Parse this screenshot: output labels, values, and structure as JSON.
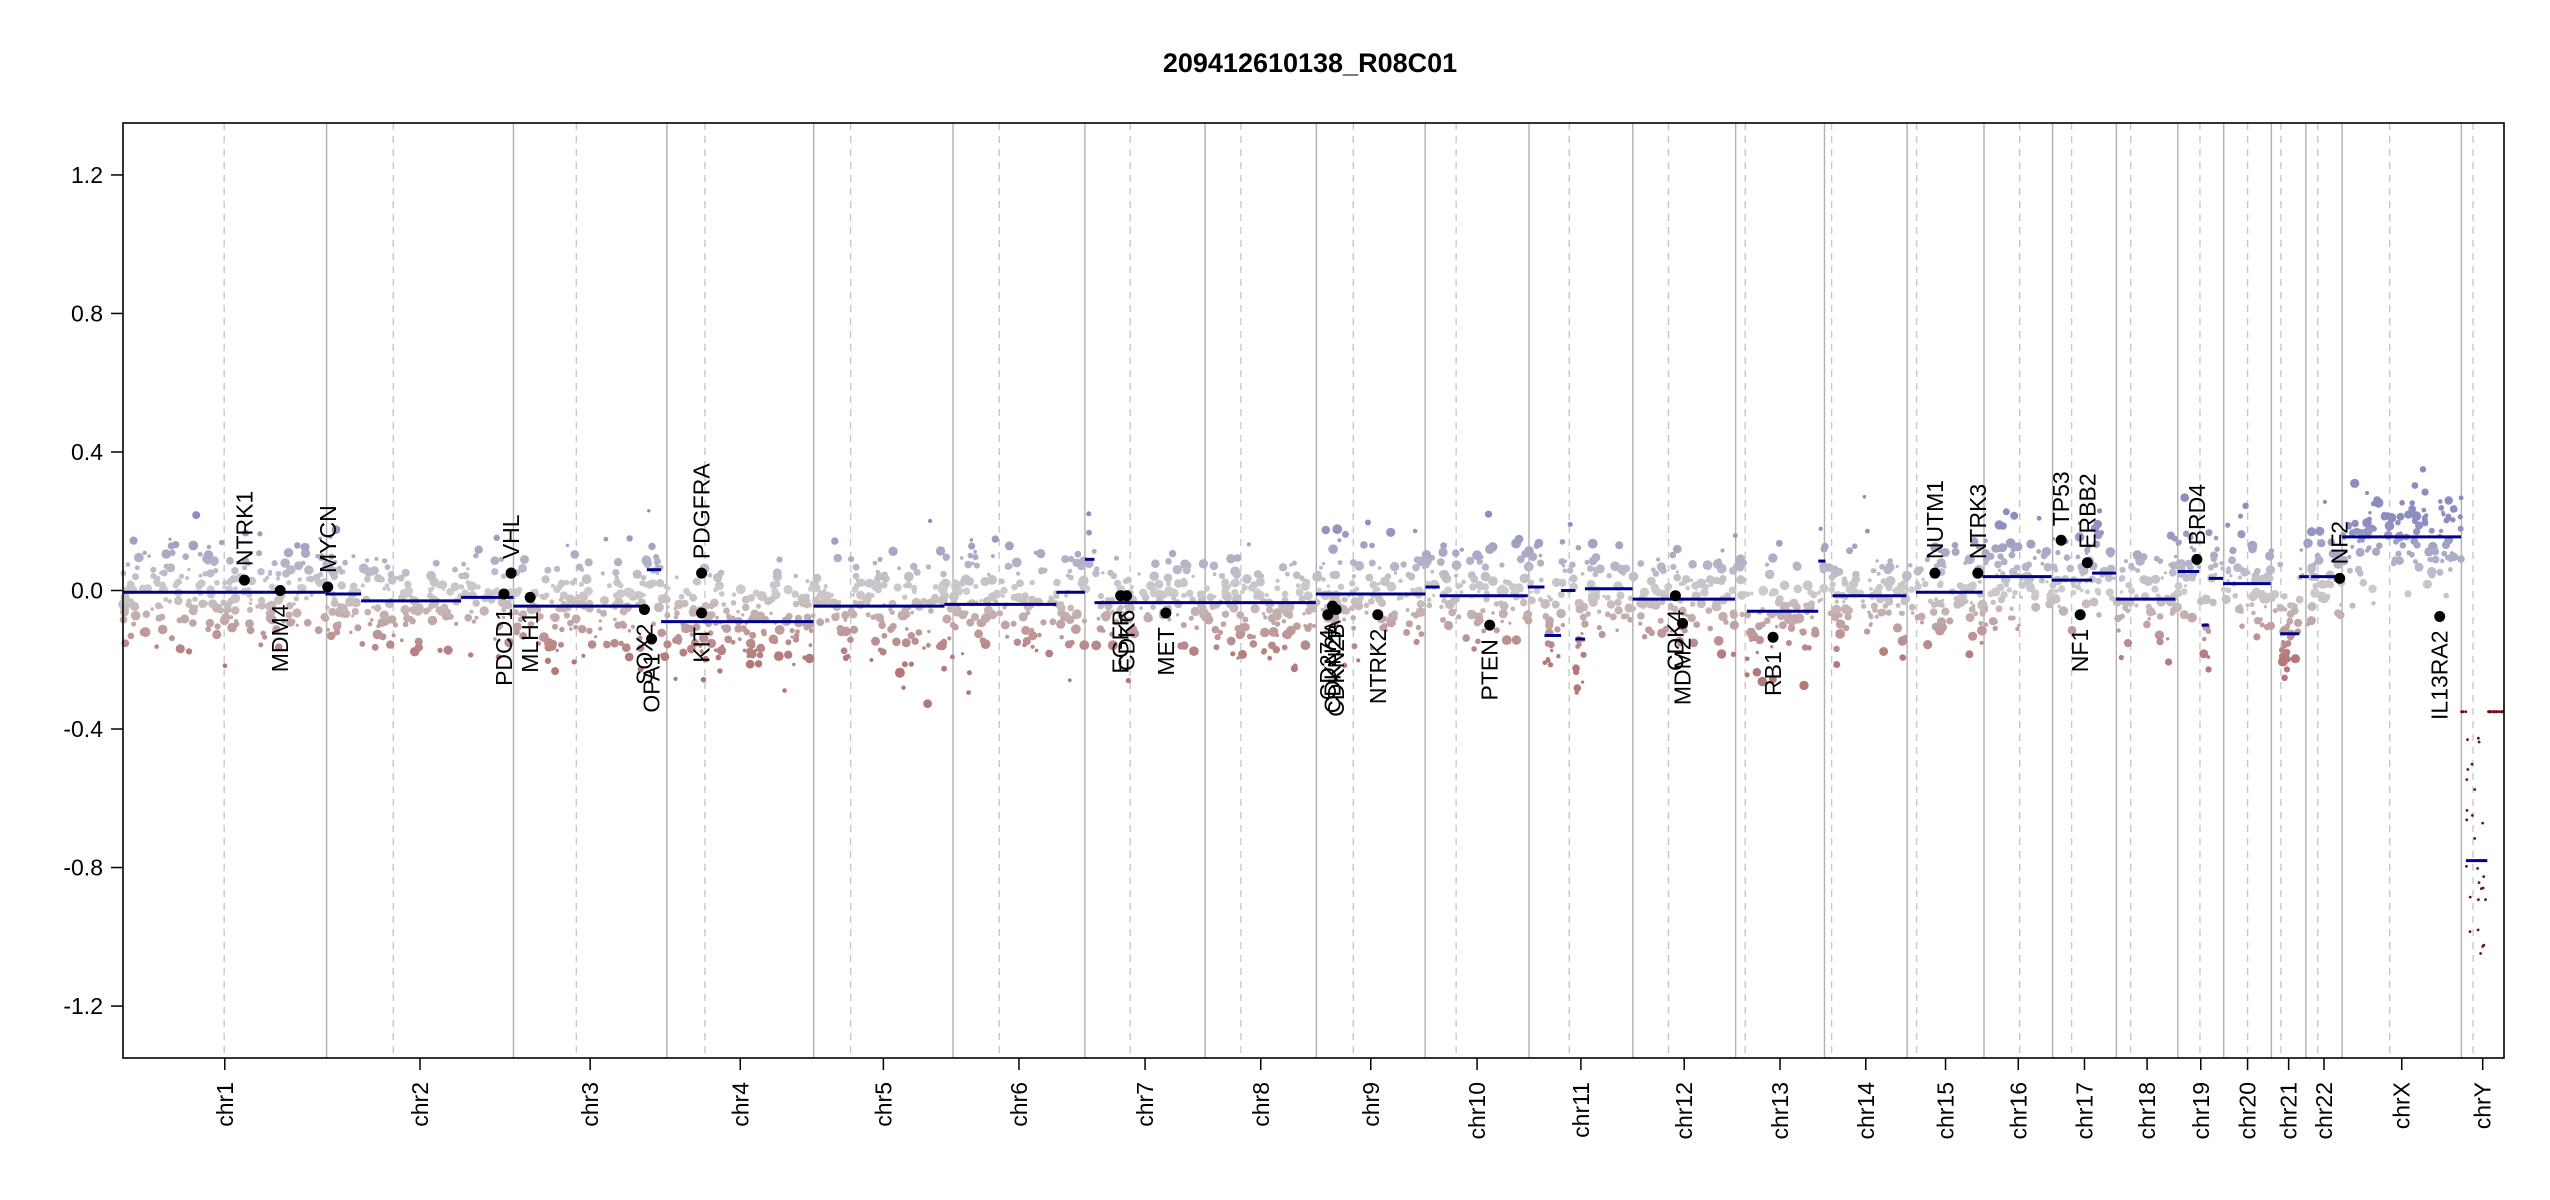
{
  "chart_data": {
    "type": "scatter",
    "title": "209412610138_R08C01",
    "xlabel": "",
    "ylabel": "",
    "ylim": [
      -1.35,
      1.35
    ],
    "y_ticks": [
      {
        "value": 1.2,
        "label": "1.2"
      },
      {
        "value": 0.8,
        "label": "0.8"
      },
      {
        "value": 0.4,
        "label": "0.4"
      },
      {
        "value": 0.0,
        "label": "0.0"
      },
      {
        "value": -0.4,
        "label": "-0.4"
      },
      {
        "value": -0.8,
        "label": "-0.8"
      },
      {
        "value": -1.2,
        "label": "-1.2"
      }
    ],
    "grid": false,
    "colors": {
      "gain": "#8c8cc0",
      "neutral": "#cccccc",
      "loss": "#b47878",
      "segment": "#00008b",
      "gene": "#000000"
    },
    "chromosomes": [
      {
        "name": "chr1",
        "start": 0.0,
        "end": 0.0855,
        "centromere": 0.0425
      },
      {
        "name": "chr2",
        "start": 0.0855,
        "end": 0.164,
        "centromere": 0.1135
      },
      {
        "name": "chr3",
        "start": 0.164,
        "end": 0.2284,
        "centromere": 0.1904
      },
      {
        "name": "chr4",
        "start": 0.2284,
        "end": 0.2901,
        "centromere": 0.2444
      },
      {
        "name": "chr5",
        "start": 0.2901,
        "end": 0.3486,
        "centromere": 0.3056
      },
      {
        "name": "chr6",
        "start": 0.3486,
        "end": 0.404,
        "centromere": 0.368
      },
      {
        "name": "chr7",
        "start": 0.404,
        "end": 0.4545,
        "centromere": 0.423
      },
      {
        "name": "chr8",
        "start": 0.4545,
        "end": 0.5012,
        "centromere": 0.4695
      },
      {
        "name": "chr9",
        "start": 0.5012,
        "end": 0.5469,
        "centromere": 0.5167
      },
      {
        "name": "chr10",
        "start": 0.5469,
        "end": 0.5905,
        "centromere": 0.5599
      },
      {
        "name": "chr11",
        "start": 0.5905,
        "end": 0.6341,
        "centromere": 0.6074
      },
      {
        "name": "chr12",
        "start": 0.6341,
        "end": 0.6773,
        "centromere": 0.6491
      },
      {
        "name": "chr13",
        "start": 0.6773,
        "end": 0.7146,
        "centromere": 0.6813
      },
      {
        "name": "chr14",
        "start": 0.7146,
        "end": 0.7493,
        "centromere": 0.7176
      },
      {
        "name": "chr15",
        "start": 0.7493,
        "end": 0.7816,
        "centromere": 0.7533
      },
      {
        "name": "chr16",
        "start": 0.7816,
        "end": 0.8104,
        "centromere": 0.7966
      },
      {
        "name": "chr17",
        "start": 0.8104,
        "end": 0.8372,
        "centromere": 0.8184
      },
      {
        "name": "chr18",
        "start": 0.8372,
        "end": 0.863,
        "centromere": 0.8432
      },
      {
        "name": "chr19",
        "start": 0.863,
        "end": 0.8823,
        "centromere": 0.8723
      },
      {
        "name": "chr20",
        "start": 0.8823,
        "end": 0.9023,
        "centromere": 0.8923
      },
      {
        "name": "chr21",
        "start": 0.9023,
        "end": 0.9168,
        "centromere": 0.9063
      },
      {
        "name": "chr22",
        "start": 0.9168,
        "end": 0.932,
        "centromere": 0.9218
      },
      {
        "name": "chrX",
        "start": 0.932,
        "end": 0.9821,
        "centromere": 0.952
      },
      {
        "name": "chrY",
        "start": 0.9821,
        "end": 1.0,
        "centromere": 0.987
      }
    ],
    "segments": [
      {
        "x0": 0.0,
        "x1": 0.06,
        "y": -0.005
      },
      {
        "x0": 0.06,
        "x1": 0.085,
        "y": -0.005
      },
      {
        "x0": 0.085,
        "x1": 0.1,
        "y": -0.01
      },
      {
        "x0": 0.1,
        "x1": 0.142,
        "y": -0.03
      },
      {
        "x0": 0.142,
        "x1": 0.164,
        "y": -0.02
      },
      {
        "x0": 0.164,
        "x1": 0.22,
        "y": -0.045
      },
      {
        "x0": 0.22,
        "x1": 0.226,
        "y": 0.06
      },
      {
        "x0": 0.226,
        "x1": 0.29,
        "y": -0.09
      },
      {
        "x0": 0.29,
        "x1": 0.345,
        "y": -0.045
      },
      {
        "x0": 0.345,
        "x1": 0.392,
        "y": -0.04
      },
      {
        "x0": 0.392,
        "x1": 0.404,
        "y": -0.005
      },
      {
        "x0": 0.404,
        "x1": 0.408,
        "y": 0.09
      },
      {
        "x0": 0.408,
        "x1": 0.501,
        "y": -0.035
      },
      {
        "x0": 0.501,
        "x1": 0.547,
        "y": -0.01
      },
      {
        "x0": 0.547,
        "x1": 0.553,
        "y": 0.01
      },
      {
        "x0": 0.553,
        "x1": 0.59,
        "y": -0.015
      },
      {
        "x0": 0.59,
        "x1": 0.597,
        "y": 0.01
      },
      {
        "x0": 0.597,
        "x1": 0.604,
        "y": -0.13
      },
      {
        "x0": 0.604,
        "x1": 0.61,
        "y": 0.0
      },
      {
        "x0": 0.61,
        "x1": 0.614,
        "y": -0.14
      },
      {
        "x0": 0.614,
        "x1": 0.634,
        "y": 0.005
      },
      {
        "x0": 0.634,
        "x1": 0.677,
        "y": -0.025
      },
      {
        "x0": 0.682,
        "x1": 0.712,
        "y": -0.06
      },
      {
        "x0": 0.712,
        "x1": 0.715,
        "y": 0.085
      },
      {
        "x0": 0.718,
        "x1": 0.749,
        "y": -0.015
      },
      {
        "x0": 0.753,
        "x1": 0.781,
        "y": -0.005
      },
      {
        "x0": 0.781,
        "x1": 0.81,
        "y": 0.04
      },
      {
        "x0": 0.81,
        "x1": 0.827,
        "y": 0.03
      },
      {
        "x0": 0.827,
        "x1": 0.837,
        "y": 0.05
      },
      {
        "x0": 0.837,
        "x1": 0.862,
        "y": -0.025
      },
      {
        "x0": 0.863,
        "x1": 0.872,
        "y": 0.055
      },
      {
        "x0": 0.873,
        "x1": 0.876,
        "y": -0.1
      },
      {
        "x0": 0.876,
        "x1": 0.882,
        "y": 0.035
      },
      {
        "x0": 0.882,
        "x1": 0.902,
        "y": 0.02
      },
      {
        "x0": 0.906,
        "x1": 0.914,
        "y": -0.125
      },
      {
        "x0": 0.914,
        "x1": 0.918,
        "y": 0.04
      },
      {
        "x0": 0.919,
        "x1": 0.93,
        "y": 0.04
      },
      {
        "x0": 0.932,
        "x1": 0.982,
        "y": 0.155
      },
      {
        "x0": 0.984,
        "x1": 0.993,
        "y": -0.78
      }
    ],
    "genes": [
      {
        "name": "NTRK1",
        "x": 0.051,
        "y": 0.03,
        "side": "above"
      },
      {
        "name": "MDM4",
        "x": 0.066,
        "y": 0.0,
        "side": "below"
      },
      {
        "name": "MYCN",
        "x": 0.086,
        "y": 0.01,
        "side": "above"
      },
      {
        "name": "VHL",
        "x": 0.163,
        "y": 0.05,
        "side": "above"
      },
      {
        "name": "PDCD1",
        "x": 0.16,
        "y": -0.01,
        "side": "below"
      },
      {
        "name": "MLH1",
        "x": 0.171,
        "y": -0.02,
        "side": "below"
      },
      {
        "name": "SOX2",
        "x": 0.219,
        "y": -0.055,
        "side": "below"
      },
      {
        "name": "OPA1",
        "x": 0.222,
        "y": -0.14,
        "side": "below"
      },
      {
        "name": "PDGFRA",
        "x": 0.243,
        "y": 0.05,
        "side": "above"
      },
      {
        "name": "KIT",
        "x": 0.243,
        "y": -0.065,
        "side": "below"
      },
      {
        "name": "EGFR",
        "x": 0.419,
        "y": -0.015,
        "side": "below"
      },
      {
        "name": "CDK6",
        "x": 0.4215,
        "y": -0.015,
        "side": "below"
      },
      {
        "name": "MET",
        "x": 0.438,
        "y": -0.065,
        "side": "below"
      },
      {
        "name": "CD274",
        "x": 0.506,
        "y": -0.07,
        "side": "below"
      },
      {
        "name": "CDKN2A",
        "x": 0.508,
        "y": -0.045,
        "side": "below"
      },
      {
        "name": "CDKN2B",
        "x": 0.5095,
        "y": -0.055,
        "side": "below"
      },
      {
        "name": "NTRK2",
        "x": 0.527,
        "y": -0.07,
        "side": "below"
      },
      {
        "name": "PTEN",
        "x": 0.574,
        "y": -0.1,
        "side": "below"
      },
      {
        "name": "CDK4",
        "x": 0.652,
        "y": -0.015,
        "side": "below"
      },
      {
        "name": "MDM2",
        "x": 0.655,
        "y": -0.095,
        "side": "below"
      },
      {
        "name": "RB1",
        "x": 0.693,
        "y": -0.135,
        "side": "below"
      },
      {
        "name": "NUTM1",
        "x": 0.761,
        "y": 0.05,
        "side": "above"
      },
      {
        "name": "NTRK3",
        "x": 0.779,
        "y": 0.05,
        "side": "above"
      },
      {
        "name": "TP53",
        "x": 0.814,
        "y": 0.145,
        "side": "above"
      },
      {
        "name": "ERBB2",
        "x": 0.825,
        "y": 0.08,
        "side": "above"
      },
      {
        "name": "NF1",
        "x": 0.822,
        "y": -0.07,
        "side": "below"
      },
      {
        "name": "BRD4",
        "x": 0.871,
        "y": 0.09,
        "side": "above"
      },
      {
        "name": "NF2",
        "x": 0.931,
        "y": 0.035,
        "side": "above"
      },
      {
        "name": "IL13RA2",
        "x": 0.973,
        "y": -0.075,
        "side": "below"
      }
    ]
  }
}
